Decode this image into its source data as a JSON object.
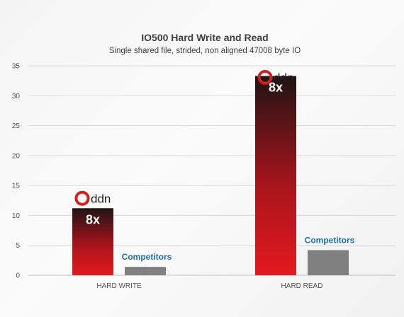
{
  "chart_data": {
    "type": "bar",
    "title": "IO500 Hard Write and Read",
    "subtitle": "Single shared file, strided, non aligned 47008 byte IO",
    "categories": [
      "HARD WRITE",
      "HARD READ"
    ],
    "series": [
      {
        "name": "ddn",
        "values": [
          11.2,
          33.3
        ],
        "color": "#d6171e"
      },
      {
        "name": "Competitors",
        "values": [
          1.4,
          4.2
        ],
        "color": "#808080"
      }
    ],
    "ylim": [
      0,
      35
    ],
    "yticks": [
      0,
      5,
      10,
      15,
      20,
      25,
      30,
      35
    ],
    "grid": true,
    "annotations": [
      {
        "text": "8x",
        "category": "HARD WRITE"
      },
      {
        "text": "8x",
        "category": "HARD READ"
      }
    ],
    "competitor_label": "Competitors",
    "logo": {
      "text": "ddn",
      "ring_color": "#e4362c"
    }
  }
}
